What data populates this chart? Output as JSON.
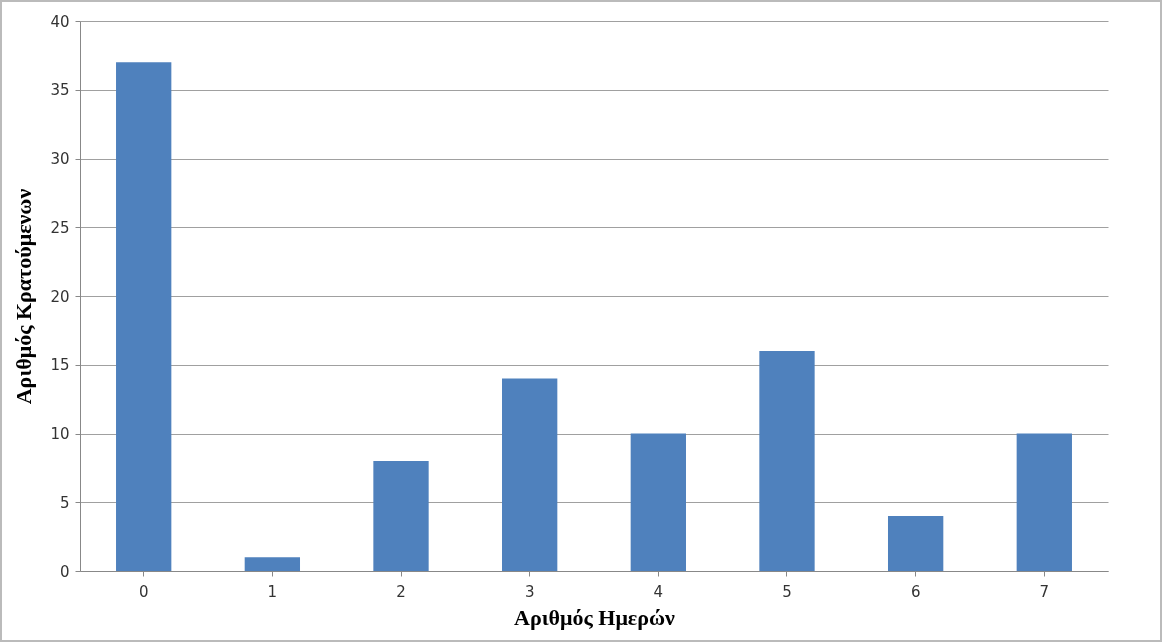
{
  "chart_data": {
    "type": "bar",
    "xlabel": "Αριθμός Ημερών",
    "ylabel": "Αριθμός Κρατούμενων",
    "categories": [
      "0",
      "1",
      "2",
      "3",
      "4",
      "5",
      "6",
      "7"
    ],
    "values": [
      37,
      1,
      8,
      14,
      10,
      16,
      4,
      10
    ],
    "color": "#4f81bd",
    "ylim": [
      0,
      40
    ],
    "yticks": [
      0,
      5,
      10,
      15,
      20,
      25,
      30,
      35,
      40
    ],
    "grid": "y"
  }
}
